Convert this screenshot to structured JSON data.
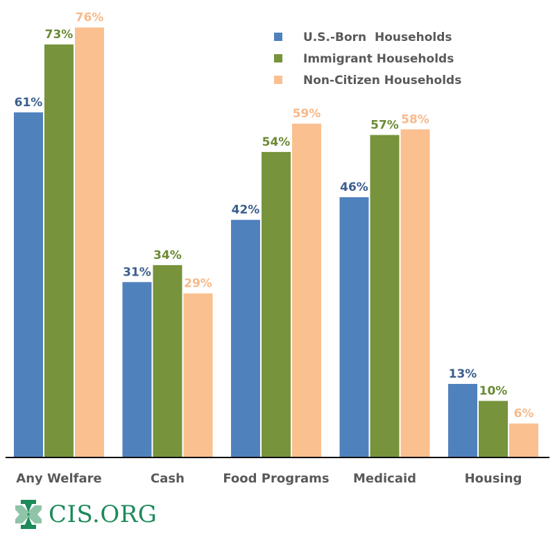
{
  "chart_data": {
    "type": "bar",
    "title": "",
    "xlabel": "",
    "ylabel": "",
    "ylim": [
      0,
      80
    ],
    "grid": false,
    "legend_position": "top-right",
    "categories": [
      "Any Welfare",
      "Cash",
      "Food Programs",
      "Medicaid",
      "Housing"
    ],
    "series": [
      {
        "name": "U.S.-Born  Households",
        "color": "#4f81bd",
        "label_color": "#3b5e8c",
        "values": [
          61,
          31,
          42,
          46,
          13
        ]
      },
      {
        "name": "Immigrant Households",
        "color": "#77933c",
        "label_color": "#6b8a34",
        "values": [
          73,
          34,
          54,
          57,
          10
        ]
      },
      {
        "name": "Non-Citizen Households",
        "color": "#fac090",
        "label_color": "#f7b98a",
        "values": [
          76,
          29,
          59,
          58,
          6
        ]
      }
    ],
    "value_suffix": "%"
  },
  "logo": {
    "text": "CIS.ORG",
    "icon": "cis-cross-logo-icon"
  }
}
